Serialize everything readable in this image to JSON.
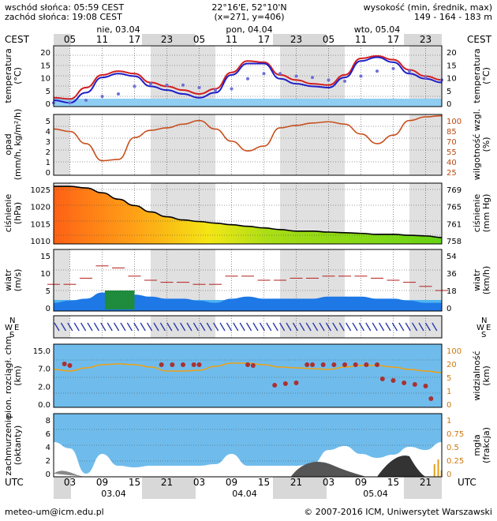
{
  "header": {
    "sunrise": "wschód słońca: 05:59 CEST",
    "sunset": "zachód słońca: 19:08 CEST",
    "coords": "22°16'E, 52°10'N",
    "grid": "(x=271, y=406)",
    "elev_label": "wysokość (min, średnik, max)",
    "elev_values": "149 - 164 - 183 m"
  },
  "top_axis": {
    "tz_label": "CEST",
    "dates": [
      "nie, 03.04",
      "pon, 04.04",
      "wto, 05.04"
    ],
    "hours": [
      "05",
      "11",
      "17",
      "23",
      "05",
      "11",
      "17",
      "23",
      "05",
      "11",
      "17",
      "23"
    ]
  },
  "bottom_axis": {
    "tz_label": "UTC",
    "hours": [
      "03",
      "09",
      "15",
      "21",
      "03",
      "09",
      "15",
      "21",
      "03",
      "09",
      "15",
      "21"
    ],
    "dates": [
      "03.04",
      "04.04",
      "05.04"
    ]
  },
  "footer": {
    "email": "meteo-um@icm.edu.pl",
    "copyright": "© 2007-2016 ICM, Uniwersytet Warszawski"
  },
  "panel_labels": {
    "temp": [
      "temperatura",
      "(°C)"
    ],
    "temp_r": [
      "temperatura",
      "(°C)"
    ],
    "precip": [
      "opad",
      "(mm/h, kg/m²/h)"
    ],
    "precip_r": [
      "wilgotność wzgl.",
      "(%)"
    ],
    "press": [
      "ciśnienie",
      "(hPa)"
    ],
    "press_r": [
      "ciśnienie",
      "(mm Hg)"
    ],
    "wind": [
      "wiatr",
      "(m/s)"
    ],
    "wind_r": [
      "wiatr",
      "(km/h)"
    ],
    "vis": [
      "pion. rozciągł. chm.",
      "(km)"
    ],
    "vis_r": [
      "widzialność",
      "(km)"
    ],
    "cloud": [
      "zachmurzenie",
      "(oktanty)"
    ],
    "cloud_r": [
      "mgła",
      "(frakcja)"
    ]
  },
  "ticks": {
    "temp": [
      "20",
      "15",
      "10",
      "5",
      "0"
    ],
    "precip_l": [
      "5",
      "4",
      "3",
      "2",
      "1",
      "0"
    ],
    "precip_r": [
      "100",
      "85",
      "70",
      "55",
      "40",
      "25"
    ],
    "press_l": [
      "1025",
      "1020",
      "1015",
      "1010"
    ],
    "press_r": [
      "769",
      "765",
      "761",
      "758"
    ],
    "wind_l": [
      "15",
      "10",
      "5",
      "0"
    ],
    "wind_r": [
      "54",
      "36",
      "18",
      "0"
    ],
    "vis_l": [
      "15.0",
      "7.0",
      "2.0",
      "0.0"
    ],
    "vis_r": [
      "100",
      "20",
      "5",
      "1",
      "0"
    ],
    "cloud_l": [
      "8",
      "6",
      "4",
      "2",
      "0"
    ],
    "cloud_r": [
      "1",
      "0.75",
      "0.5",
      "0.25",
      "0"
    ]
  },
  "wind_dir_label": {
    "w": "W",
    "n": "N",
    "s": "S",
    "e": "E"
  },
  "chart_data": [
    {
      "type": "line",
      "panel": "temperatura",
      "ylim": [
        -2,
        22
      ],
      "x_hours_utc": [
        0,
        3,
        6,
        9,
        12,
        15,
        18,
        21,
        24,
        27,
        30,
        33,
        36,
        39,
        42,
        45,
        48,
        51,
        54,
        57,
        60,
        63,
        66,
        69,
        72
      ],
      "series": [
        {
          "values": [
            1.5,
            1.0,
            5.5,
            10.5,
            12,
            11,
            7.5,
            6,
            4.5,
            3,
            5,
            11.5,
            16,
            15.5,
            10.5,
            8.5,
            7,
            6.5,
            10.5,
            17,
            18,
            16.5,
            12.5,
            10,
            8.5
          ]
        },
        {
          "values": [
            0.5,
            -0.5,
            3.5,
            9.5,
            11,
            10,
            6,
            4.5,
            3,
            1.5,
            3.5,
            10.5,
            15,
            15,
            9,
            7,
            6,
            5.5,
            9.5,
            16,
            17.5,
            15.5,
            11,
            9,
            7.5
          ]
        },
        {
          "values": [
            -0.5,
            -0.5,
            0.5,
            2,
            3,
            6,
            7,
            6.5,
            6.5,
            5.5,
            4.5,
            5,
            9,
            11,
            11,
            10,
            9.5,
            8.5,
            8,
            10,
            12,
            13,
            12,
            9.5,
            8.5
          ]
        }
      ]
    },
    {
      "type": "line",
      "panel": "opad / wilgotność",
      "ylim": [
        0,
        5
      ],
      "y2lim": [
        25,
        100
      ],
      "x_hours_utc": [
        0,
        3,
        6,
        9,
        12,
        15,
        18,
        21,
        24,
        27,
        30,
        33,
        36,
        39,
        42,
        45,
        48,
        51,
        54,
        57,
        60,
        63,
        66,
        69,
        72
      ],
      "series": [
        {
          "values": [
            3.8,
            3.6,
            2.6,
            1.2,
            1.3,
            3.1,
            3.7,
            3.9,
            4.2,
            4.5,
            3.8,
            2.8,
            2.0,
            2.4,
            3.9,
            4.1,
            4.3,
            4.4,
            4.2,
            3.4,
            2.6,
            3.3,
            4.5,
            4.8,
            4.9
          ]
        }
      ]
    },
    {
      "type": "area",
      "panel": "ciśnienie",
      "ylim": [
        1007,
        1026
      ],
      "y2lim": [
        755.5,
        770.3
      ],
      "x_hours_utc": [
        0,
        3,
        6,
        9,
        12,
        15,
        18,
        21,
        24,
        27,
        30,
        33,
        36,
        39,
        42,
        45,
        48,
        51,
        54,
        57,
        60,
        63,
        66,
        69,
        72
      ],
      "series": [
        {
          "values": [
            1025,
            1025,
            1024.5,
            1023,
            1021,
            1019,
            1017,
            1015.5,
            1014.5,
            1014,
            1013.5,
            1013,
            1012.5,
            1012,
            1011.5,
            1011,
            1011,
            1010.7,
            1010.5,
            1010.3,
            1010,
            1010,
            1009.7,
            1009.5,
            1009
          ]
        }
      ]
    },
    {
      "type": "line",
      "panel": "wiatr",
      "ylim": [
        0,
        15
      ],
      "y2lim": [
        0,
        54
      ],
      "x_hours_utc": [
        0,
        3,
        6,
        9,
        12,
        15,
        18,
        21,
        24,
        27,
        30,
        33,
        36,
        39,
        42,
        45,
        48,
        51,
        54,
        57,
        60,
        63,
        66,
        69,
        72
      ],
      "series": [
        {
          "values": [
            6.5,
            6.5,
            8,
            11,
            10.5,
            8.5,
            7.5,
            7,
            7,
            6.5,
            6.5,
            8.5,
            8.5,
            7.5,
            7.5,
            8,
            8,
            8.5,
            8.5,
            8.5,
            8,
            7.5,
            7,
            6,
            5
          ]
        },
        {
          "values": [
            2,
            2.5,
            3,
            4.5,
            4.5,
            4,
            3.5,
            3,
            3,
            2.5,
            2,
            3,
            3.5,
            3,
            3,
            3,
            3,
            3.5,
            3.5,
            3.5,
            3,
            3,
            2.5,
            2,
            2
          ]
        }
      ]
    }
  ]
}
